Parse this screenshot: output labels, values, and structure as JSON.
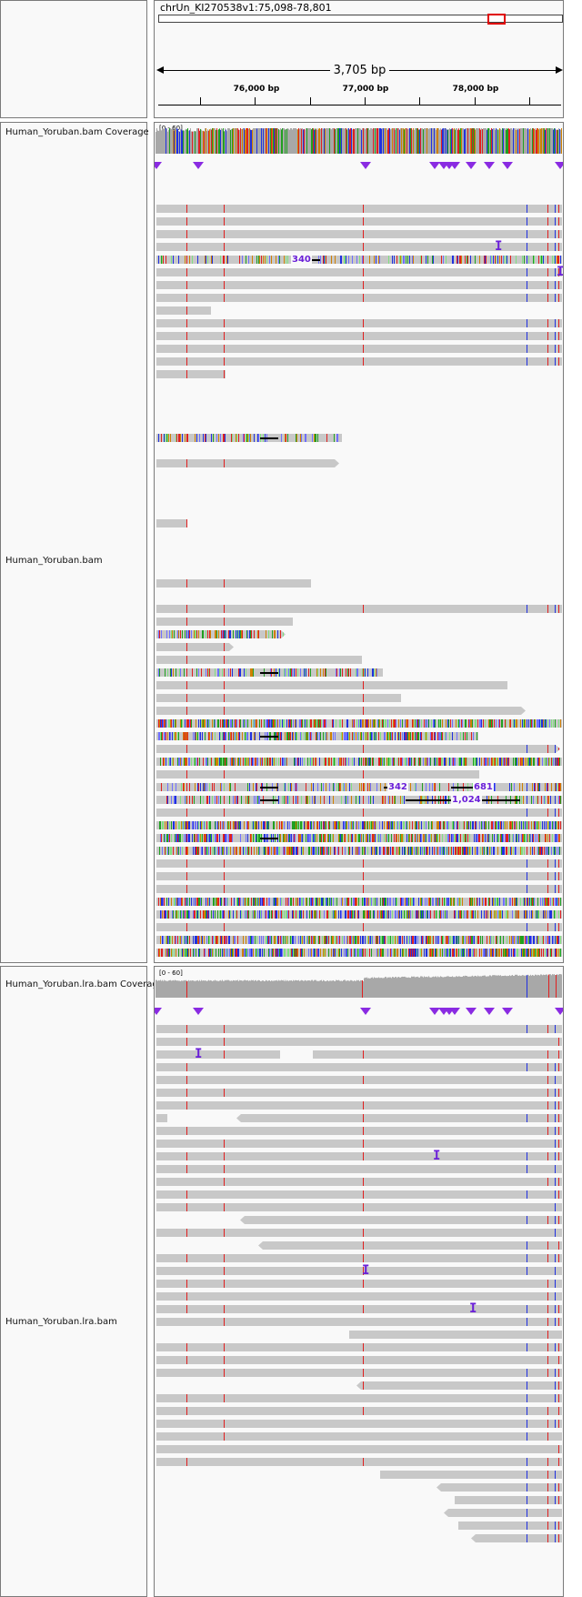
{
  "header": {
    "locus": "chrUn_KI270538v1:75,098-78,801",
    "span_label": "3,705 bp",
    "ticks": [
      "76,000 bp",
      "77,000 bp",
      "78,000 bp"
    ]
  },
  "tracks": {
    "track1_coverage_label": "Human_Yoruban.bam Coverage",
    "track1_reads_label": "Human_Yoruban.bam",
    "track1_range": "[0 - 60]",
    "track2_coverage_label": "Human_Yoruban.lra.bam Coverage",
    "track2_reads_label": "Human_Yoruban.lra.bam",
    "track2_range": "[0 - 60]"
  },
  "deletion_labels": [
    "340",
    "342",
    "681",
    "1,024"
  ],
  "colors": {
    "read": "#c8c8c8",
    "mismatch_red": "#e02020",
    "mismatch_blue": "#2030e0",
    "insertion": "#6a1fd8",
    "region_box": "#e00000"
  }
}
